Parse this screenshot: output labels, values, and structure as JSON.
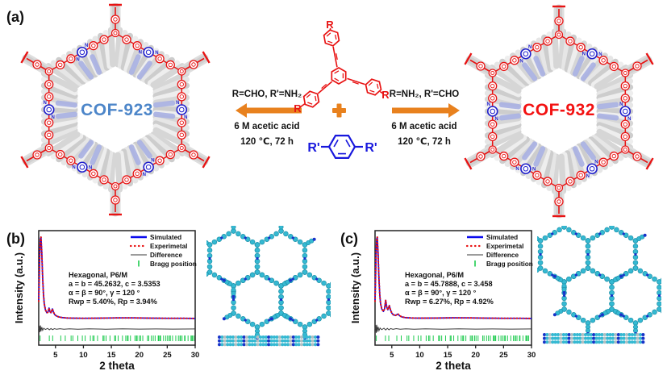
{
  "panel_a": {
    "label": "(a)",
    "cof_left": {
      "name": "COF-923",
      "label_color": "#4d86c9"
    },
    "cof_right": {
      "name": "COF-932",
      "label_color": "#f31111"
    },
    "scheme": {
      "left_condition": "R=CHO, R'=NH₂",
      "right_condition": "R=NH₂, R'=CHO",
      "left_acid": "6 M acetic acid",
      "left_temp": "120 ℃,  72 h",
      "right_acid": "6 M acetic acid",
      "right_temp": "120 ℃,  72 h",
      "plus_symbol": "+",
      "r_label": "R",
      "r_prime_label": "R'",
      "n_label": "N"
    }
  },
  "panel_b": {
    "label": "(b)",
    "chart_index": 0
  },
  "panel_c": {
    "label": "(c)",
    "chart_index": 1
  },
  "colors": {
    "orange": "#e8811e",
    "red_structure": "#e81313",
    "blue_structure": "#1717dd",
    "azine_blue": "#2020cc",
    "gray_light": "#e2e2e2",
    "gray_mid": "#d3d3d3",
    "periwinkle": "#a9b1e3",
    "lattice_cyan": "#35b9d2",
    "lattice_cyan_edge": "#1f93ab",
    "lattice_blue_dot": "#1733c9",
    "simulated_blue": "#0b0bee",
    "experimental_red": "#e81111",
    "difference_gray": "#3a3a3a",
    "bragg_green": "#1ecb4f"
  },
  "chart_data": [
    {
      "type": "line",
      "panel": "b",
      "xlabel": "2 theta",
      "ylabel": "Intensity (a.u.)",
      "xlim": [
        2,
        30
      ],
      "xticks": [
        5,
        10,
        15,
        20,
        25,
        30
      ],
      "grid": false,
      "legend_position": "top-right",
      "legend": [
        "Simulated",
        "Experimetal",
        "Difference",
        "Bragg position"
      ],
      "annotation": [
        "Hexagonal, P6/M",
        "a = b = 45.2632, c = 3.5353",
        "α = β = 90°, γ = 120 °",
        "Rwp = 5.40%, Rp = 3.94%"
      ],
      "series": [
        {
          "name": "Simulated",
          "style": "solid",
          "color": "#0b0bee",
          "points": [
            [
              2.0,
              0.25
            ],
            [
              2.1,
              0.55
            ],
            [
              2.2,
              0.85
            ],
            [
              2.3,
              0.98
            ],
            [
              2.4,
              1.0
            ],
            [
              2.55,
              0.82
            ],
            [
              2.7,
              0.52
            ],
            [
              2.85,
              0.33
            ],
            [
              3.0,
              0.22
            ],
            [
              3.2,
              0.15
            ],
            [
              3.45,
              0.115
            ],
            [
              3.65,
              0.12
            ],
            [
              3.85,
              0.17
            ],
            [
              4.0,
              0.13
            ],
            [
              4.2,
              0.115
            ],
            [
              4.45,
              0.16
            ],
            [
              4.65,
              0.12
            ],
            [
              4.85,
              0.095
            ],
            [
              5.1,
              0.08
            ],
            [
              5.5,
              0.068
            ],
            [
              6.0,
              0.06
            ],
            [
              7.0,
              0.054
            ],
            [
              8.0,
              0.052
            ],
            [
              10,
              0.05
            ],
            [
              13,
              0.052
            ],
            [
              16,
              0.055
            ],
            [
              19,
              0.055
            ],
            [
              22,
              0.052
            ],
            [
              25,
              0.05
            ],
            [
              28,
              0.05
            ],
            [
              30,
              0.048
            ]
          ]
        },
        {
          "name": "Experimetal",
          "style": "dotted",
          "color": "#e81111",
          "same_as": "Simulated"
        },
        {
          "name": "Difference",
          "style": "solid",
          "color": "#3a3a3a",
          "points": [
            [
              2.0,
              0
            ],
            [
              2.1,
              0.5
            ],
            [
              2.2,
              -0.5
            ],
            [
              2.3,
              0.55
            ],
            [
              2.4,
              -0.35
            ],
            [
              2.55,
              0.3
            ],
            [
              2.7,
              -0.2
            ],
            [
              2.9,
              0.12
            ],
            [
              3.2,
              -0.08
            ],
            [
              3.6,
              0.1
            ],
            [
              3.9,
              -0.12
            ],
            [
              4.2,
              0.08
            ],
            [
              4.5,
              -0.1
            ],
            [
              4.8,
              0.06
            ],
            [
              5.2,
              -0.04
            ],
            [
              5.8,
              0.05
            ],
            [
              6.5,
              -0.03
            ],
            [
              7.5,
              0.03
            ],
            [
              9,
              -0.02
            ],
            [
              11,
              0.02
            ],
            [
              14,
              -0.02
            ],
            [
              17,
              0.02
            ],
            [
              20,
              -0.015
            ],
            [
              23,
              0.015
            ],
            [
              26,
              -0.01
            ],
            [
              30,
              0.01
            ]
          ]
        }
      ],
      "bragg": {
        "first_peak_2theta": 2.25,
        "max": 30
      }
    },
    {
      "type": "line",
      "panel": "c",
      "xlabel": "2 theta",
      "ylabel": "Intensity (a.u.)",
      "xlim": [
        2,
        30
      ],
      "xticks": [
        5,
        10,
        15,
        20,
        25,
        30
      ],
      "grid": false,
      "legend_position": "top-right",
      "legend": [
        "Simulated",
        "Experimetal",
        "Difference",
        "Bragg position"
      ],
      "annotation": [
        "Hexagonal, P6/M",
        "a = b = 45.7888, c = 3.458",
        "α = β = 90°, γ = 120 °",
        "Rwp = 6.27%, Rp = 4.92%"
      ],
      "series": [
        {
          "name": "Simulated",
          "style": "solid",
          "color": "#0b0bee",
          "points": [
            [
              2.0,
              0.25
            ],
            [
              2.1,
              0.55
            ],
            [
              2.2,
              0.85
            ],
            [
              2.3,
              0.98
            ],
            [
              2.4,
              1.0
            ],
            [
              2.55,
              0.8
            ],
            [
              2.7,
              0.5
            ],
            [
              2.85,
              0.32
            ],
            [
              3.0,
              0.22
            ],
            [
              3.2,
              0.16
            ],
            [
              3.5,
              0.13
            ],
            [
              3.7,
              0.16
            ],
            [
              3.9,
              0.26
            ],
            [
              4.1,
              0.18
            ],
            [
              4.3,
              0.15
            ],
            [
              4.55,
              0.2
            ],
            [
              4.75,
              0.15
            ],
            [
              5.0,
              0.11
            ],
            [
              5.3,
              0.09
            ],
            [
              5.7,
              0.085
            ],
            [
              6.1,
              0.1
            ],
            [
              6.4,
              0.08
            ],
            [
              6.8,
              0.066
            ],
            [
              7.5,
              0.058
            ],
            [
              8.5,
              0.054
            ],
            [
              10,
              0.052
            ],
            [
              13,
              0.053
            ],
            [
              16,
              0.056
            ],
            [
              19,
              0.055
            ],
            [
              22,
              0.052
            ],
            [
              25,
              0.05
            ],
            [
              28,
              0.05
            ],
            [
              30,
              0.048
            ]
          ]
        },
        {
          "name": "Experimetal",
          "style": "dotted",
          "color": "#e81111",
          "same_as": "Simulated"
        },
        {
          "name": "Difference",
          "style": "solid",
          "color": "#3a3a3a",
          "points": [
            [
              2.0,
              0
            ],
            [
              2.1,
              0.6
            ],
            [
              2.2,
              -0.6
            ],
            [
              2.3,
              0.65
            ],
            [
              2.4,
              -0.45
            ],
            [
              2.55,
              0.35
            ],
            [
              2.7,
              -0.25
            ],
            [
              2.9,
              0.15
            ],
            [
              3.2,
              -0.1
            ],
            [
              3.6,
              0.12
            ],
            [
              3.9,
              -0.15
            ],
            [
              4.2,
              0.1
            ],
            [
              4.5,
              -0.12
            ],
            [
              4.8,
              0.08
            ],
            [
              5.2,
              -0.05
            ],
            [
              5.8,
              0.06
            ],
            [
              6.5,
              -0.04
            ],
            [
              7.5,
              0.03
            ],
            [
              9,
              -0.02
            ],
            [
              11,
              0.02
            ],
            [
              14,
              -0.02
            ],
            [
              17,
              0.02
            ],
            [
              20,
              -0.015
            ],
            [
              23,
              0.015
            ],
            [
              26,
              -0.01
            ],
            [
              30,
              0.01
            ]
          ]
        }
      ],
      "bragg": {
        "first_peak_2theta": 2.23,
        "max": 30
      }
    }
  ]
}
